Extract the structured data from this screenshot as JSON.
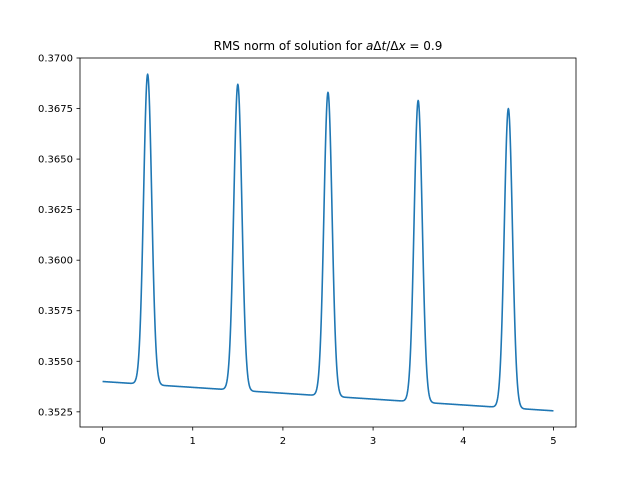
{
  "chart_data": {
    "type": "line",
    "title": "RMS norm of solution for ",
    "title_math": {
      "a": "a",
      "delta1": "Δ",
      "t": "t",
      "slash": "/",
      "delta2": "Δ",
      "x": "x",
      "rhs": " = 0.9"
    },
    "xlabel": "",
    "ylabel": "",
    "xlim": [
      -0.25,
      5.25
    ],
    "ylim": [
      0.35175,
      0.37
    ],
    "xticks": [
      0,
      1,
      2,
      3,
      4,
      5
    ],
    "xtick_labels": [
      "0",
      "1",
      "2",
      "3",
      "4",
      "5"
    ],
    "yticks": [
      0.3525,
      0.355,
      0.3575,
      0.36,
      0.3625,
      0.365,
      0.3675,
      0.37
    ],
    "ytick_labels": [
      "0.3525",
      "0.3550",
      "0.3575",
      "0.3600",
      "0.3625",
      "0.3650",
      "0.3675",
      "0.3700"
    ],
    "grid": false,
    "line_color": "#1f77b4",
    "series": [
      {
        "baseline_start": 0.354,
        "baseline_end": 0.35255,
        "peaks": [
          {
            "x": 0.5,
            "y": 0.3692
          },
          {
            "x": 1.5,
            "y": 0.3687
          },
          {
            "x": 2.5,
            "y": 0.3683
          },
          {
            "x": 3.5,
            "y": 0.3679
          },
          {
            "x": 4.5,
            "y": 0.3675
          }
        ],
        "x_range": [
          0,
          5
        ]
      }
    ]
  }
}
